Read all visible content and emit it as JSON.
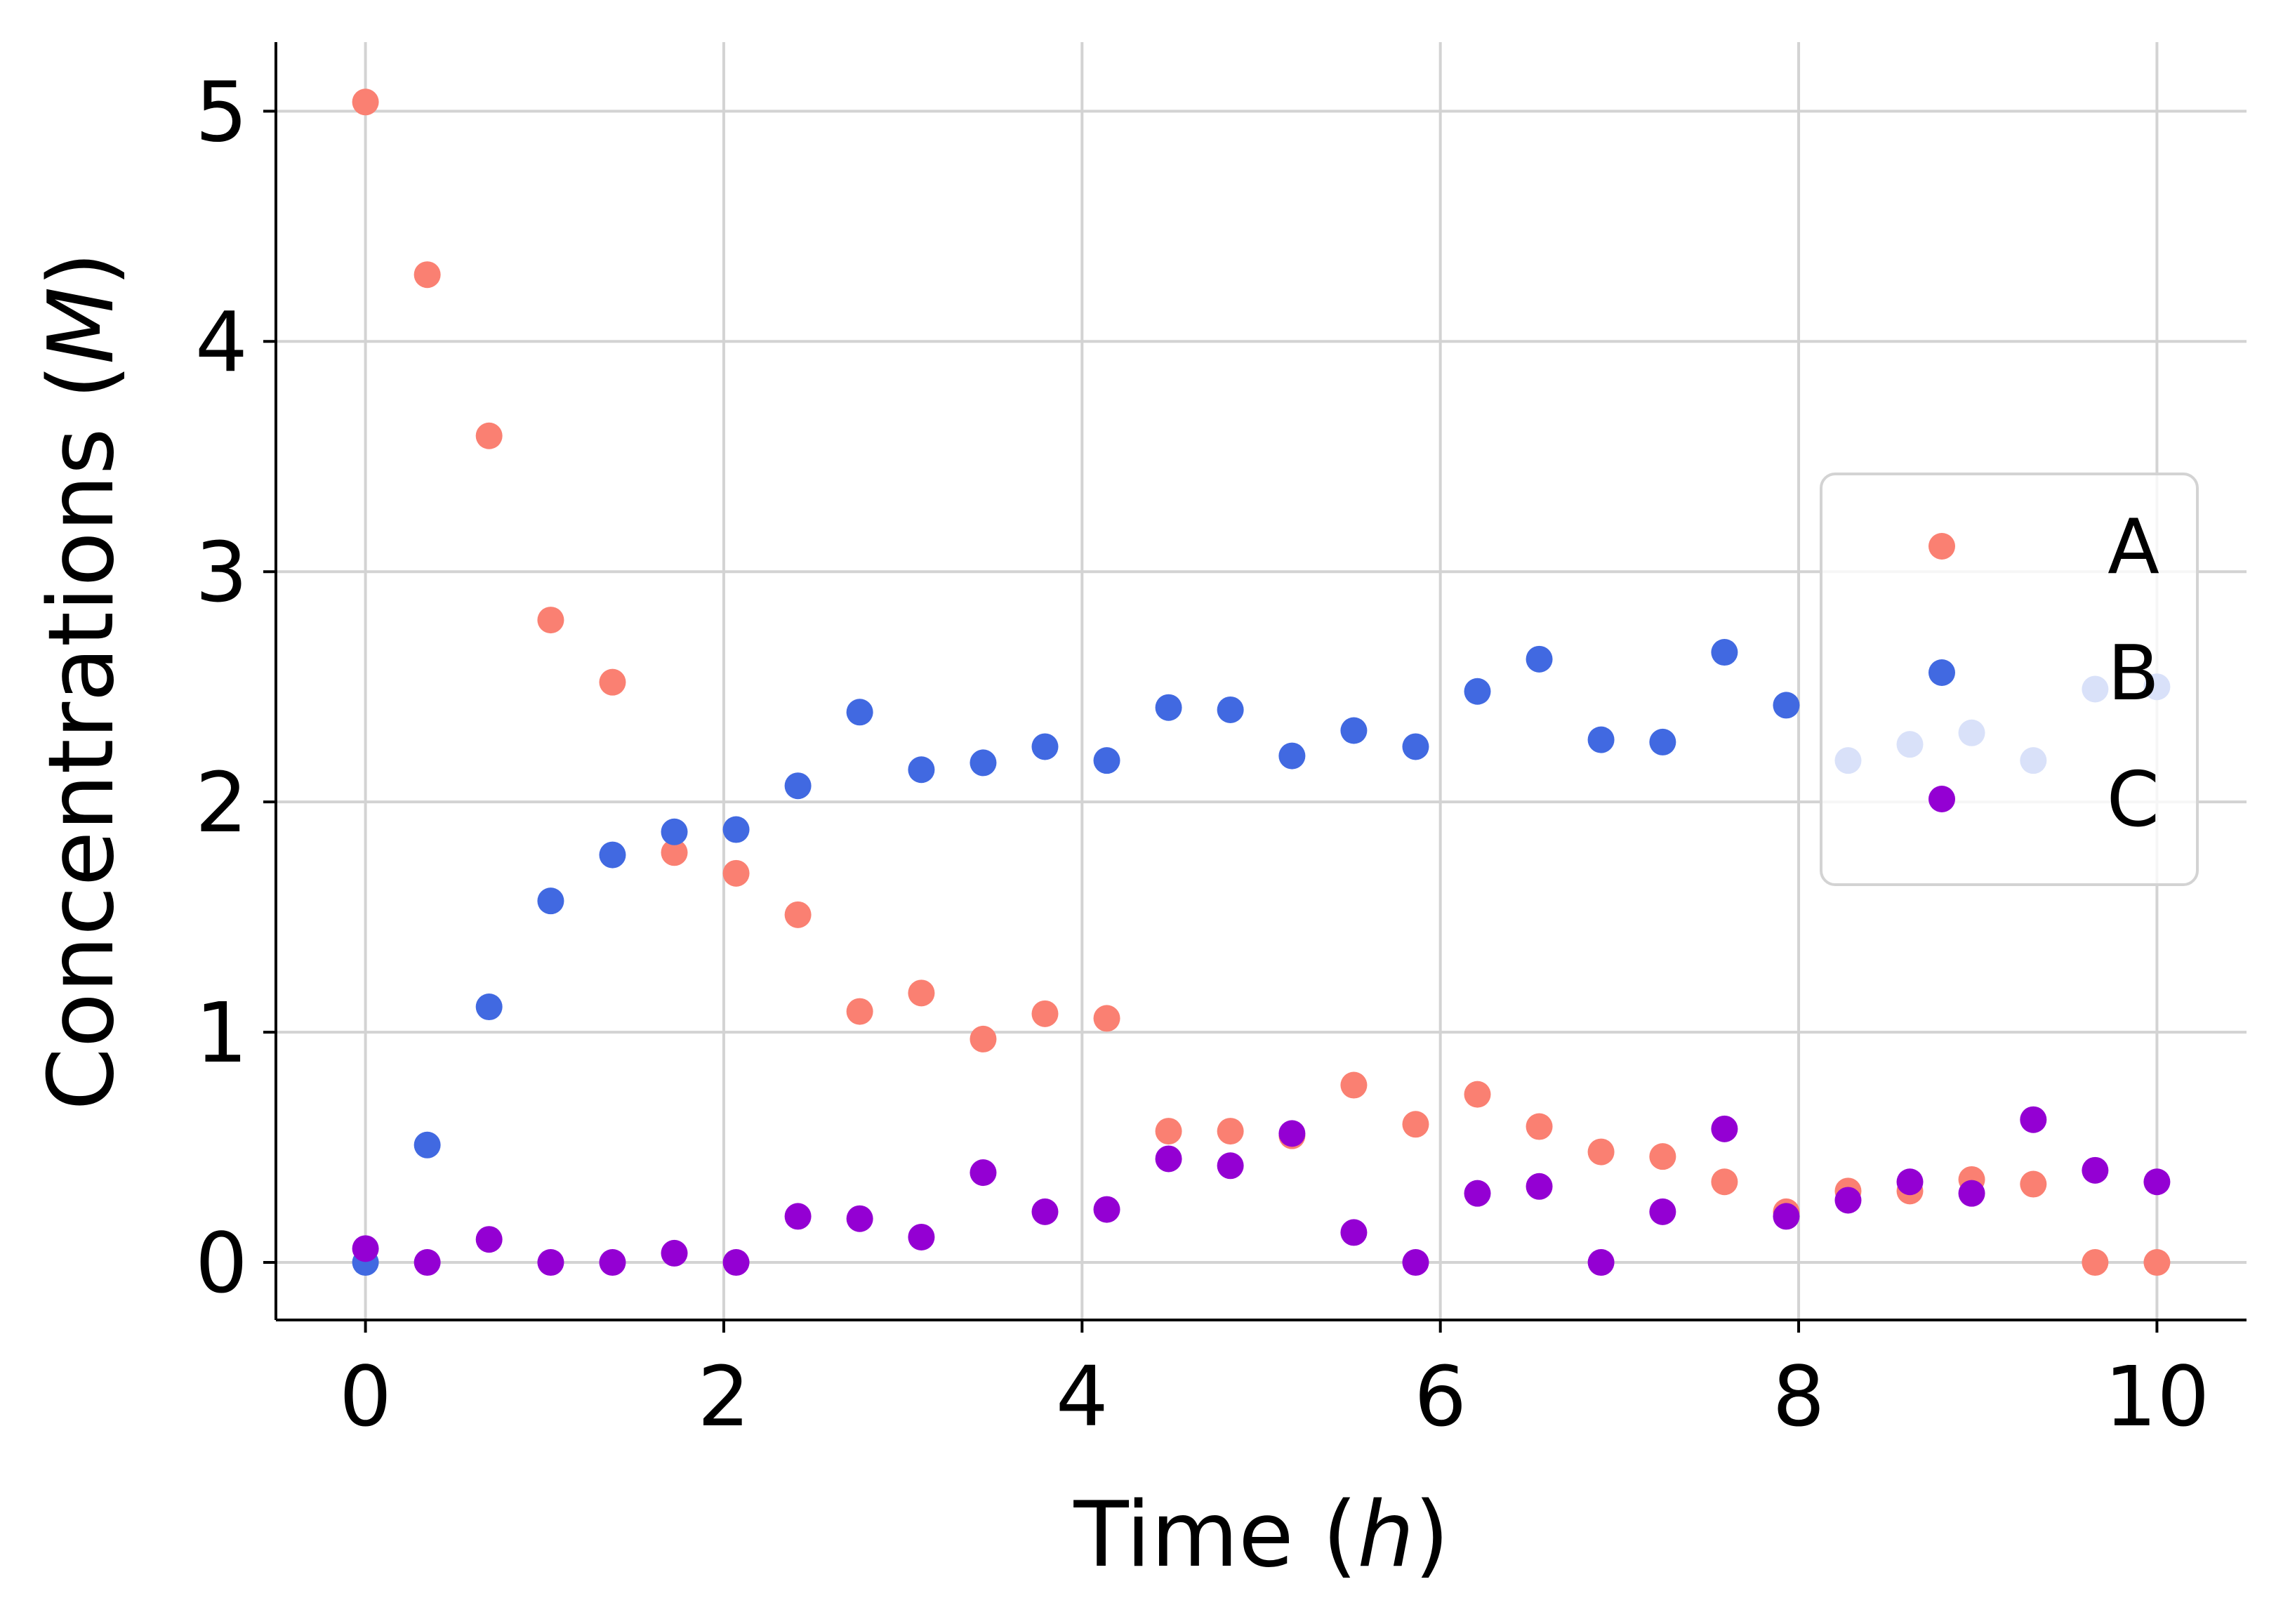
{
  "chart_data": {
    "type": "scatter",
    "title": "",
    "xlabel": "Time (h)",
    "ylabel": "Concentrations (M)",
    "xlim": [
      -0.5,
      10.5
    ],
    "ylim": [
      -0.25,
      5.3
    ],
    "xticks": [
      0,
      2,
      4,
      6,
      8,
      10
    ],
    "yticks": [
      0,
      1,
      2,
      3,
      4,
      5
    ],
    "grid": true,
    "legend_position": "center-right",
    "x": [
      0,
      0.345,
      0.69,
      1.034,
      1.379,
      1.724,
      2.069,
      2.414,
      2.759,
      3.103,
      3.448,
      3.793,
      4.138,
      4.483,
      4.828,
      5.172,
      5.517,
      5.862,
      6.207,
      6.552,
      6.897,
      7.241,
      7.586,
      7.931,
      8.276,
      8.621,
      8.966,
      9.31,
      9.655,
      10.0
    ],
    "series": [
      {
        "name": "A",
        "color": "#fa8072",
        "values": [
          5.04,
          4.29,
          3.59,
          2.79,
          2.52,
          1.78,
          1.69,
          1.51,
          1.09,
          1.17,
          0.97,
          1.08,
          1.06,
          0.57,
          0.57,
          0.55,
          0.77,
          0.6,
          0.73,
          0.59,
          0.48,
          0.46,
          0.35,
          0.22,
          0.31,
          0.31,
          0.36,
          0.34,
          0.0,
          0.0
        ]
      },
      {
        "name": "B",
        "color": "#4169e1",
        "values": [
          0.0,
          0.51,
          1.11,
          1.57,
          1.77,
          1.87,
          1.88,
          2.07,
          2.39,
          2.14,
          2.17,
          2.24,
          2.18,
          2.41,
          2.4,
          2.2,
          2.31,
          2.24,
          2.48,
          2.62,
          2.27,
          2.26,
          2.65,
          2.42,
          2.18,
          2.25,
          2.3,
          2.18,
          2.49,
          2.5
        ]
      },
      {
        "name": "C",
        "color": "#9400d3",
        "values": [
          0.06,
          0.0,
          0.1,
          0.0,
          0.0,
          0.04,
          0.0,
          0.2,
          0.19,
          0.11,
          0.39,
          0.22,
          0.23,
          0.45,
          0.42,
          0.56,
          0.13,
          0.0,
          0.3,
          0.33,
          0.0,
          0.22,
          0.58,
          0.2,
          0.27,
          0.35,
          0.3,
          0.62,
          0.4,
          0.35
        ]
      }
    ]
  }
}
